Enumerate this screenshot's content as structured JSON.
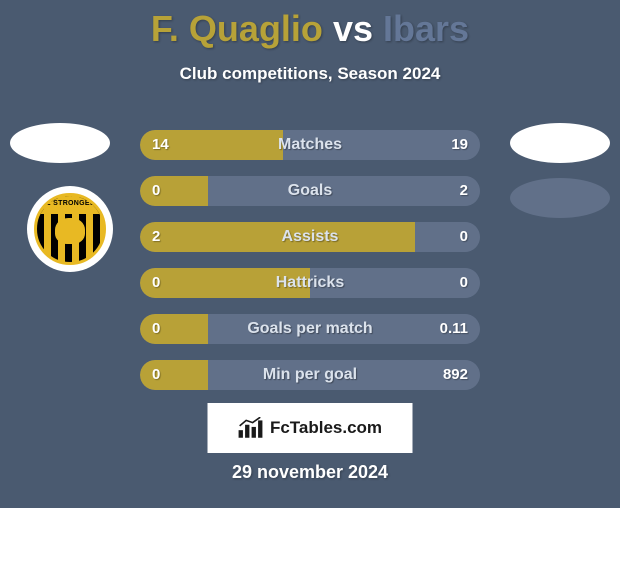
{
  "header": {
    "player1_name": "F. Quaglio",
    "vs_text": "vs",
    "player2_name": "Ibars",
    "player1_color": "#b7a238",
    "vs_color": "#ffffff",
    "player2_color": "#647797",
    "subtitle": "Club competitions, Season 2024"
  },
  "club_badge": {
    "text": "HE STRONGEST"
  },
  "bars": {
    "track_color": "#5d6d85",
    "left_color": "#b8a137",
    "right_color": "#617089",
    "label_color": "#dbe2ec",
    "value_color": "#ffffff",
    "rows": [
      {
        "label": "Matches",
        "left_val": "14",
        "right_val": "19",
        "left_pct": 42,
        "right_pct": 58
      },
      {
        "label": "Goals",
        "left_val": "0",
        "right_val": "2",
        "left_pct": 20,
        "right_pct": 80
      },
      {
        "label": "Assists",
        "left_val": "2",
        "right_val": "0",
        "left_pct": 81,
        "right_pct": 19
      },
      {
        "label": "Hattricks",
        "left_val": "0",
        "right_val": "0",
        "left_pct": 50,
        "right_pct": 50
      },
      {
        "label": "Goals per match",
        "left_val": "0",
        "right_val": "0.11",
        "left_pct": 20,
        "right_pct": 80
      },
      {
        "label": "Min per goal",
        "left_val": "0",
        "right_val": "892",
        "left_pct": 20,
        "right_pct": 80
      }
    ]
  },
  "footer": {
    "brand": "FcTables.com",
    "date": "29 november 2024"
  }
}
